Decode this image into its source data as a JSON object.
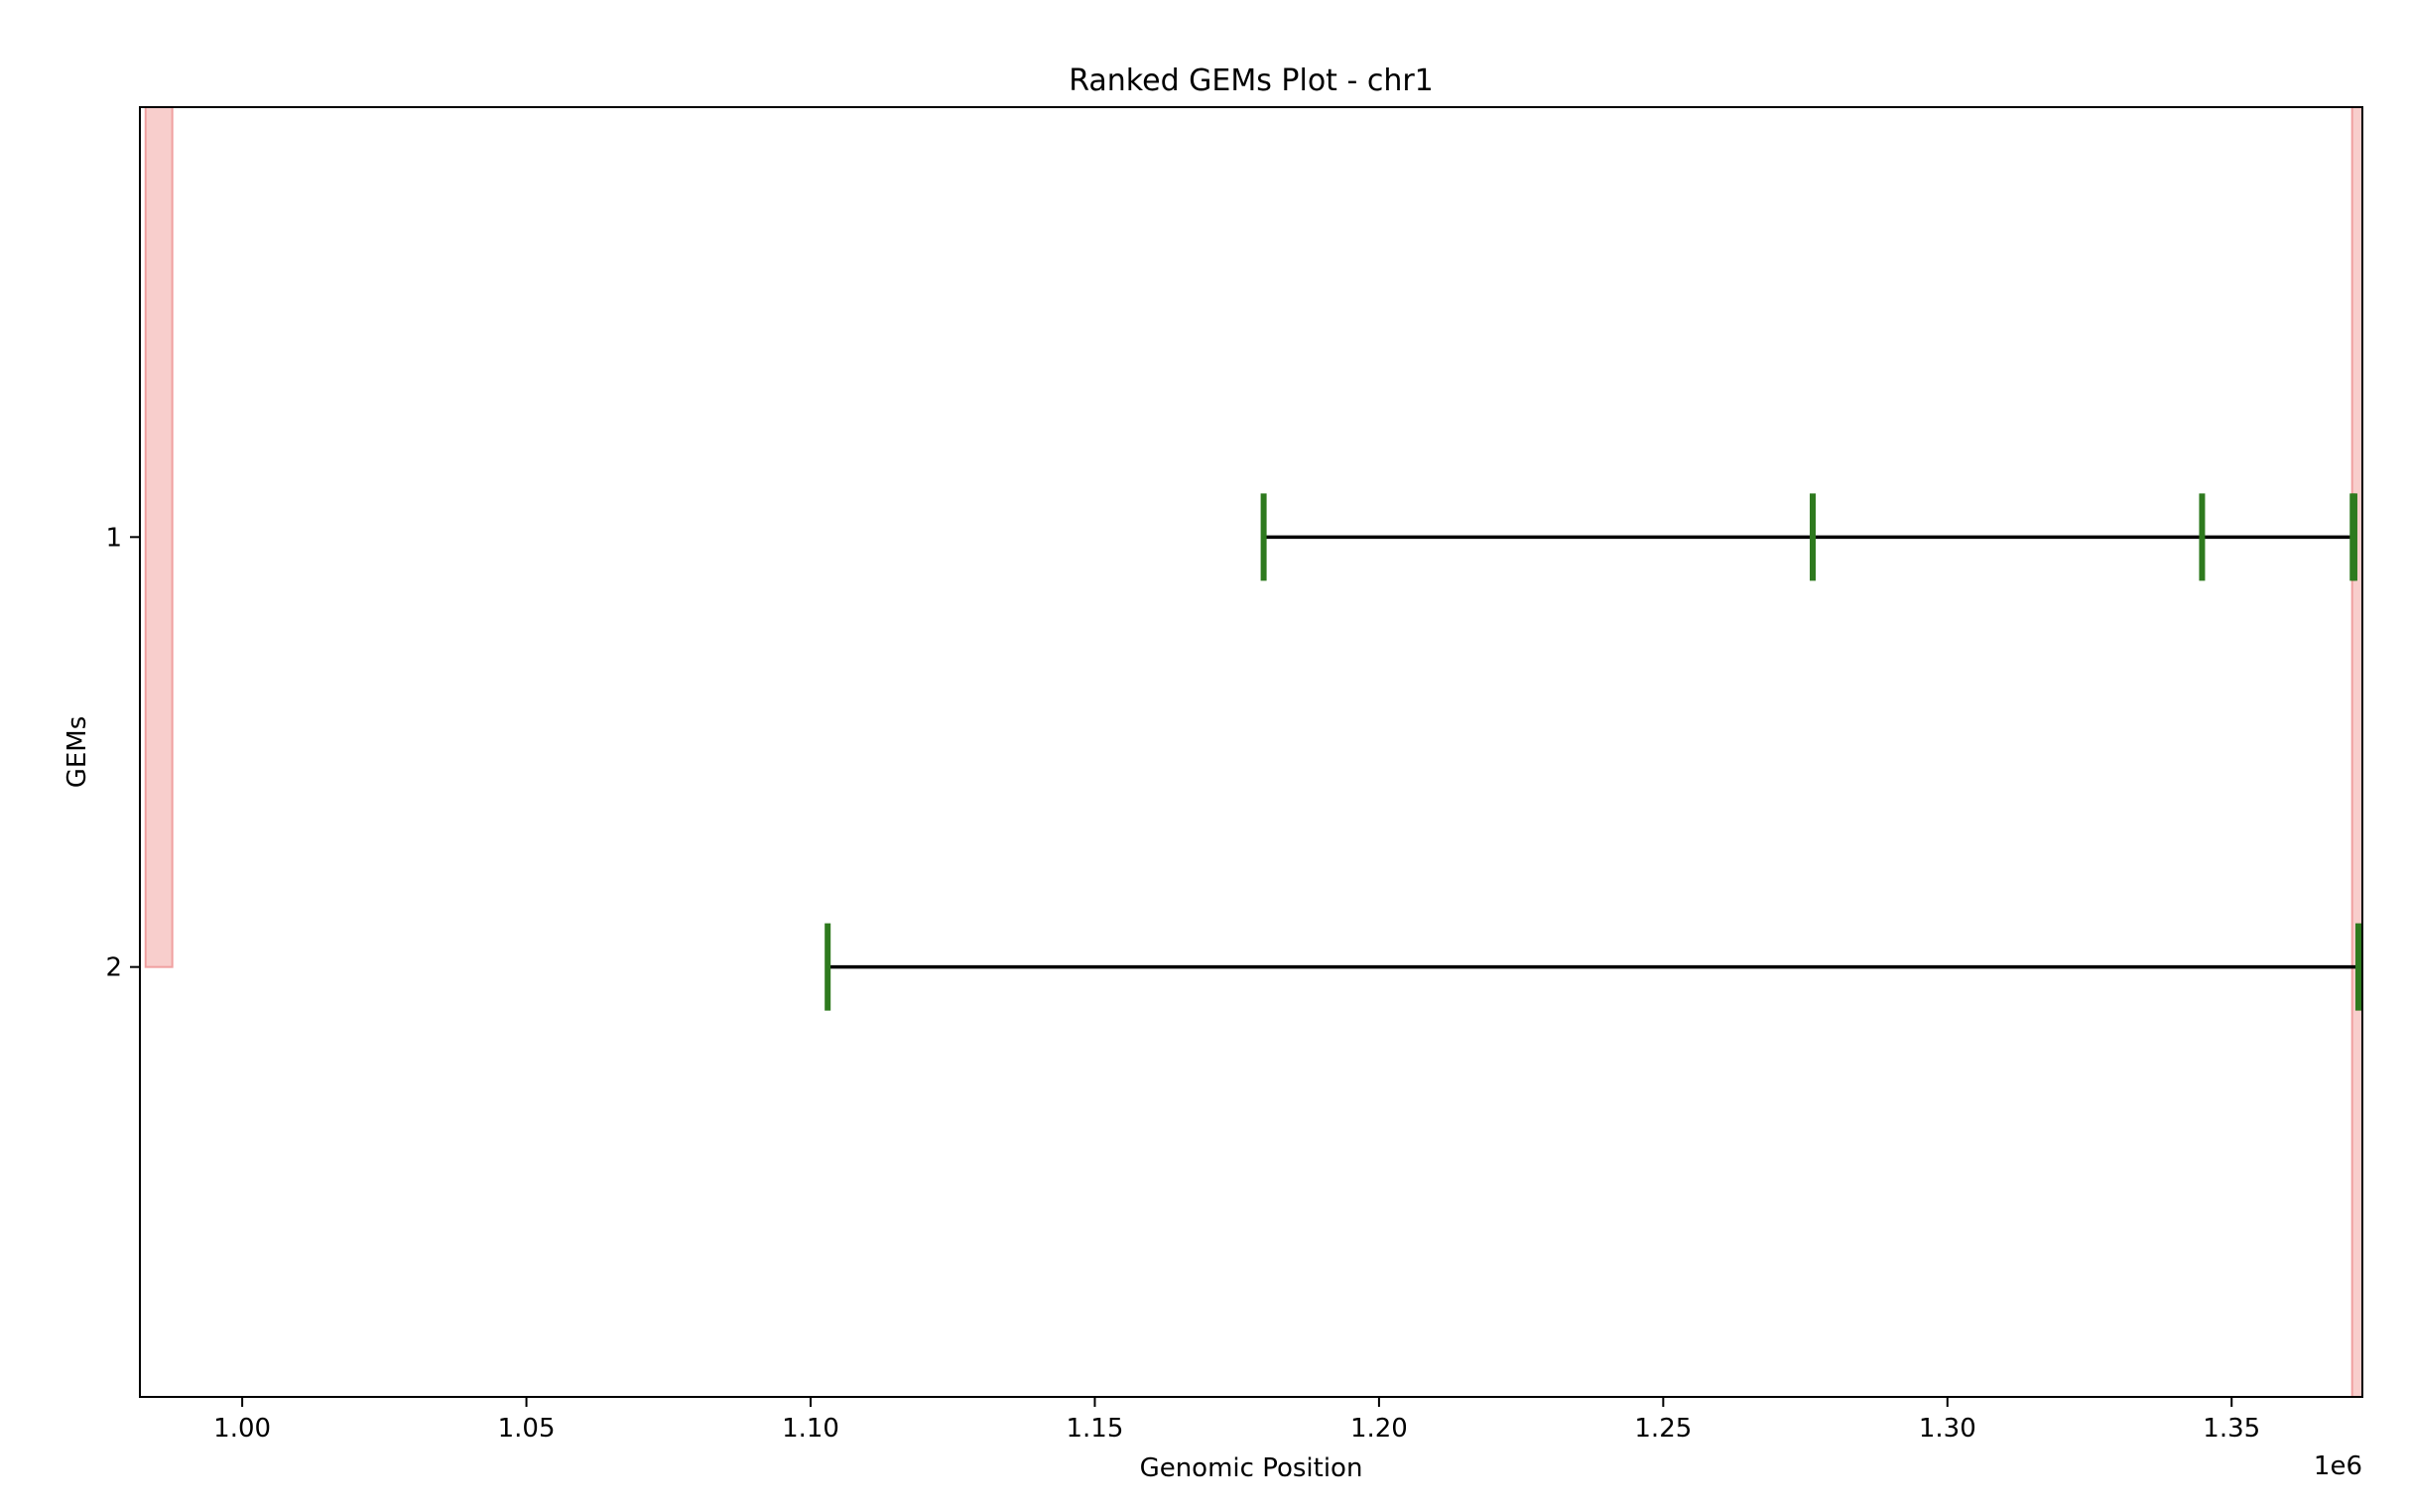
{
  "chart_data": {
    "type": "gantt-segments",
    "title": "Ranked GEMs Plot - chr1",
    "xlabel": "Genomic Position",
    "ylabel": "GEMs",
    "x_offset_label": "1e6",
    "xlim": [
      982000,
      1373000
    ],
    "ylim": [
      3.0,
      0.0
    ],
    "x_ticks": [
      1000000,
      1050000,
      1100000,
      1150000,
      1200000,
      1250000,
      1300000,
      1350000
    ],
    "x_tick_labels": [
      "1.00",
      "1.05",
      "1.10",
      "1.15",
      "1.20",
      "1.25",
      "1.30",
      "1.35"
    ],
    "y_ticks": [
      1,
      2
    ],
    "y_tick_labels": [
      "1",
      "2"
    ],
    "highlight_regions": [
      {
        "x_start": 983000,
        "x_end": 987700,
        "y_top": 0.0,
        "y_bottom": 2.0
      },
      {
        "x_start": 1371200,
        "x_end": 1373000,
        "y_top": 0.0,
        "y_bottom": 3.0
      }
    ],
    "gems": [
      {
        "rank": 1,
        "start": 1179700,
        "end": 1371600,
        "fragments": [
          1179700,
          1276300,
          1344800,
          1371300,
          1371600
        ]
      },
      {
        "rank": 2,
        "start": 1103000,
        "end": 1372300,
        "fragments": [
          1103000,
          1372300
        ]
      }
    ],
    "colors": {
      "fragment": "#2e7a1e",
      "segment": "#000000",
      "highlight_fill": "#f8cecc",
      "highlight_edge": "#f0a0a0"
    },
    "grid": false
  }
}
